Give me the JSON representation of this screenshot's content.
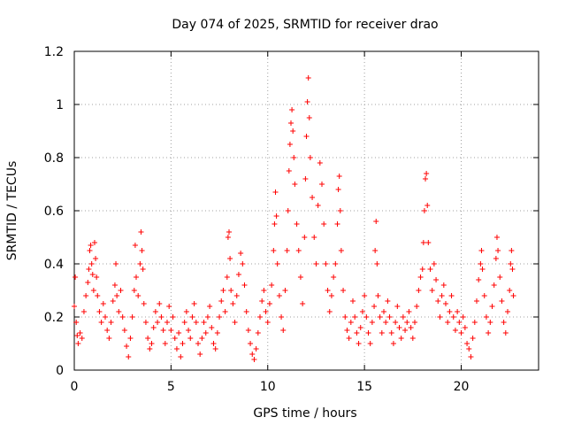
{
  "chart_data": {
    "type": "scatter",
    "title": "Day 074 of 2025, SRMTID for receiver drao",
    "xlabel": "GPS time / hours",
    "ylabel": "SRMTID / TECUs",
    "xlim": [
      0,
      24
    ],
    "ylim": [
      0,
      1.2
    ],
    "xticks": [
      0,
      5,
      10,
      15,
      20
    ],
    "xtick_labels": [
      "0",
      "5",
      "10",
      "15",
      "20"
    ],
    "yticks": [
      0,
      0.2,
      0.4,
      0.6,
      0.8,
      1,
      1.2
    ],
    "ytick_labels": [
      "0",
      "0.2",
      "0.4",
      "0.6",
      "0.8",
      "1",
      "1.2"
    ],
    "grid": true,
    "marker": "+",
    "color": "#ff0000",
    "series": [
      {
        "name": "SRMTID",
        "points": [
          [
            0.0,
            0.24
          ],
          [
            0.05,
            0.35
          ],
          [
            0.1,
            0.18
          ],
          [
            0.15,
            0.13
          ],
          [
            0.2,
            0.1
          ],
          [
            0.3,
            0.14
          ],
          [
            0.4,
            0.12
          ],
          [
            0.5,
            0.22
          ],
          [
            0.6,
            0.28
          ],
          [
            0.7,
            0.33
          ],
          [
            0.75,
            0.38
          ],
          [
            0.8,
            0.45
          ],
          [
            0.85,
            0.47
          ],
          [
            0.9,
            0.4
          ],
          [
            0.95,
            0.36
          ],
          [
            1.0,
            0.3
          ],
          [
            1.05,
            0.48
          ],
          [
            1.1,
            0.42
          ],
          [
            1.15,
            0.35
          ],
          [
            1.2,
            0.28
          ],
          [
            1.3,
            0.22
          ],
          [
            1.4,
            0.18
          ],
          [
            1.5,
            0.25
          ],
          [
            1.6,
            0.2
          ],
          [
            1.7,
            0.15
          ],
          [
            1.8,
            0.12
          ],
          [
            1.9,
            0.18
          ],
          [
            2.0,
            0.26
          ],
          [
            2.1,
            0.32
          ],
          [
            2.15,
            0.4
          ],
          [
            2.2,
            0.28
          ],
          [
            2.3,
            0.22
          ],
          [
            2.4,
            0.3
          ],
          [
            2.5,
            0.2
          ],
          [
            2.6,
            0.15
          ],
          [
            2.7,
            0.09
          ],
          [
            2.8,
            0.05
          ],
          [
            2.9,
            0.12
          ],
          [
            3.0,
            0.2
          ],
          [
            3.1,
            0.3
          ],
          [
            3.15,
            0.47
          ],
          [
            3.2,
            0.35
          ],
          [
            3.3,
            0.28
          ],
          [
            3.4,
            0.4
          ],
          [
            3.45,
            0.52
          ],
          [
            3.5,
            0.45
          ],
          [
            3.55,
            0.38
          ],
          [
            3.6,
            0.25
          ],
          [
            3.7,
            0.18
          ],
          [
            3.8,
            0.12
          ],
          [
            3.9,
            0.08
          ],
          [
            4.0,
            0.1
          ],
          [
            4.1,
            0.16
          ],
          [
            4.2,
            0.22
          ],
          [
            4.3,
            0.18
          ],
          [
            4.4,
            0.25
          ],
          [
            4.5,
            0.2
          ],
          [
            4.6,
            0.15
          ],
          [
            4.7,
            0.1
          ],
          [
            4.8,
            0.18
          ],
          [
            4.9,
            0.24
          ],
          [
            5.0,
            0.15
          ],
          [
            5.1,
            0.2
          ],
          [
            5.2,
            0.12
          ],
          [
            5.3,
            0.08
          ],
          [
            5.4,
            0.14
          ],
          [
            5.5,
            0.05
          ],
          [
            5.6,
            0.1
          ],
          [
            5.7,
            0.18
          ],
          [
            5.8,
            0.22
          ],
          [
            5.9,
            0.15
          ],
          [
            6.0,
            0.12
          ],
          [
            6.1,
            0.2
          ],
          [
            6.2,
            0.25
          ],
          [
            6.3,
            0.18
          ],
          [
            6.4,
            0.1
          ],
          [
            6.5,
            0.06
          ],
          [
            6.6,
            0.12
          ],
          [
            6.7,
            0.18
          ],
          [
            6.8,
            0.14
          ],
          [
            6.9,
            0.2
          ],
          [
            7.0,
            0.24
          ],
          [
            7.1,
            0.16
          ],
          [
            7.2,
            0.1
          ],
          [
            7.3,
            0.08
          ],
          [
            7.4,
            0.14
          ],
          [
            7.5,
            0.2
          ],
          [
            7.6,
            0.26
          ],
          [
            7.7,
            0.3
          ],
          [
            7.8,
            0.22
          ],
          [
            7.9,
            0.35
          ],
          [
            7.95,
            0.5
          ],
          [
            8.0,
            0.52
          ],
          [
            8.05,
            0.42
          ],
          [
            8.1,
            0.3
          ],
          [
            8.2,
            0.25
          ],
          [
            8.3,
            0.18
          ],
          [
            8.4,
            0.28
          ],
          [
            8.5,
            0.36
          ],
          [
            8.6,
            0.44
          ],
          [
            8.7,
            0.4
          ],
          [
            8.8,
            0.32
          ],
          [
            8.9,
            0.22
          ],
          [
            9.0,
            0.15
          ],
          [
            9.1,
            0.1
          ],
          [
            9.2,
            0.06
          ],
          [
            9.3,
            0.04
          ],
          [
            9.4,
            0.08
          ],
          [
            9.5,
            0.14
          ],
          [
            9.6,
            0.2
          ],
          [
            9.7,
            0.26
          ],
          [
            9.8,
            0.3
          ],
          [
            9.9,
            0.22
          ],
          [
            10.0,
            0.18
          ],
          [
            10.1,
            0.25
          ],
          [
            10.2,
            0.32
          ],
          [
            10.3,
            0.45
          ],
          [
            10.35,
            0.55
          ],
          [
            10.4,
            0.67
          ],
          [
            10.45,
            0.58
          ],
          [
            10.5,
            0.4
          ],
          [
            10.6,
            0.28
          ],
          [
            10.7,
            0.2
          ],
          [
            10.8,
            0.15
          ],
          [
            10.9,
            0.3
          ],
          [
            11.0,
            0.45
          ],
          [
            11.05,
            0.6
          ],
          [
            11.1,
            0.75
          ],
          [
            11.15,
            0.85
          ],
          [
            11.2,
            0.93
          ],
          [
            11.25,
            0.98
          ],
          [
            11.3,
            0.9
          ],
          [
            11.35,
            0.8
          ],
          [
            11.4,
            0.7
          ],
          [
            11.5,
            0.55
          ],
          [
            11.6,
            0.45
          ],
          [
            11.7,
            0.35
          ],
          [
            11.8,
            0.25
          ],
          [
            11.9,
            0.5
          ],
          [
            11.95,
            0.72
          ],
          [
            12.0,
            0.88
          ],
          [
            12.05,
            1.01
          ],
          [
            12.1,
            1.1
          ],
          [
            12.15,
            0.95
          ],
          [
            12.2,
            0.8
          ],
          [
            12.3,
            0.65
          ],
          [
            12.4,
            0.5
          ],
          [
            12.5,
            0.4
          ],
          [
            12.6,
            0.62
          ],
          [
            12.7,
            0.78
          ],
          [
            12.8,
            0.7
          ],
          [
            12.9,
            0.55
          ],
          [
            13.0,
            0.4
          ],
          [
            13.1,
            0.3
          ],
          [
            13.2,
            0.22
          ],
          [
            13.3,
            0.28
          ],
          [
            13.4,
            0.35
          ],
          [
            13.5,
            0.4
          ],
          [
            13.6,
            0.55
          ],
          [
            13.65,
            0.68
          ],
          [
            13.7,
            0.73
          ],
          [
            13.75,
            0.6
          ],
          [
            13.8,
            0.45
          ],
          [
            13.9,
            0.3
          ],
          [
            14.0,
            0.2
          ],
          [
            14.1,
            0.15
          ],
          [
            14.2,
            0.12
          ],
          [
            14.3,
            0.18
          ],
          [
            14.4,
            0.26
          ],
          [
            14.5,
            0.2
          ],
          [
            14.6,
            0.14
          ],
          [
            14.7,
            0.1
          ],
          [
            14.8,
            0.16
          ],
          [
            14.9,
            0.22
          ],
          [
            15.0,
            0.28
          ],
          [
            15.1,
            0.2
          ],
          [
            15.2,
            0.14
          ],
          [
            15.3,
            0.1
          ],
          [
            15.4,
            0.18
          ],
          [
            15.5,
            0.24
          ],
          [
            15.55,
            0.45
          ],
          [
            15.6,
            0.56
          ],
          [
            15.65,
            0.4
          ],
          [
            15.7,
            0.28
          ],
          [
            15.8,
            0.2
          ],
          [
            15.9,
            0.14
          ],
          [
            16.0,
            0.22
          ],
          [
            16.1,
            0.18
          ],
          [
            16.2,
            0.26
          ],
          [
            16.3,
            0.2
          ],
          [
            16.4,
            0.14
          ],
          [
            16.5,
            0.1
          ],
          [
            16.6,
            0.18
          ],
          [
            16.7,
            0.24
          ],
          [
            16.8,
            0.16
          ],
          [
            16.9,
            0.12
          ],
          [
            17.0,
            0.2
          ],
          [
            17.1,
            0.15
          ],
          [
            17.2,
            0.18
          ],
          [
            17.3,
            0.22
          ],
          [
            17.4,
            0.16
          ],
          [
            17.5,
            0.12
          ],
          [
            17.6,
            0.18
          ],
          [
            17.7,
            0.24
          ],
          [
            17.8,
            0.3
          ],
          [
            17.9,
            0.35
          ],
          [
            18.0,
            0.38
          ],
          [
            18.05,
            0.48
          ],
          [
            18.1,
            0.6
          ],
          [
            18.15,
            0.72
          ],
          [
            18.2,
            0.74
          ],
          [
            18.25,
            0.62
          ],
          [
            18.3,
            0.48
          ],
          [
            18.4,
            0.38
          ],
          [
            18.5,
            0.3
          ],
          [
            18.6,
            0.4
          ],
          [
            18.7,
            0.34
          ],
          [
            18.8,
            0.26
          ],
          [
            18.9,
            0.2
          ],
          [
            19.0,
            0.28
          ],
          [
            19.1,
            0.32
          ],
          [
            19.2,
            0.25
          ],
          [
            19.3,
            0.18
          ],
          [
            19.4,
            0.22
          ],
          [
            19.5,
            0.28
          ],
          [
            19.6,
            0.2
          ],
          [
            19.7,
            0.15
          ],
          [
            19.8,
            0.22
          ],
          [
            19.9,
            0.18
          ],
          [
            20.0,
            0.14
          ],
          [
            20.1,
            0.2
          ],
          [
            20.2,
            0.16
          ],
          [
            20.3,
            0.1
          ],
          [
            20.4,
            0.08
          ],
          [
            20.5,
            0.05
          ],
          [
            20.6,
            0.12
          ],
          [
            20.7,
            0.18
          ],
          [
            20.8,
            0.26
          ],
          [
            20.9,
            0.34
          ],
          [
            21.0,
            0.4
          ],
          [
            21.05,
            0.45
          ],
          [
            21.1,
            0.38
          ],
          [
            21.2,
            0.28
          ],
          [
            21.3,
            0.2
          ],
          [
            21.4,
            0.14
          ],
          [
            21.5,
            0.18
          ],
          [
            21.6,
            0.24
          ],
          [
            21.7,
            0.32
          ],
          [
            21.8,
            0.42
          ],
          [
            21.85,
            0.5
          ],
          [
            21.9,
            0.45
          ],
          [
            22.0,
            0.35
          ],
          [
            22.1,
            0.26
          ],
          [
            22.2,
            0.18
          ],
          [
            22.3,
            0.14
          ],
          [
            22.4,
            0.22
          ],
          [
            22.5,
            0.3
          ],
          [
            22.55,
            0.4
          ],
          [
            22.6,
            0.45
          ],
          [
            22.65,
            0.38
          ],
          [
            22.7,
            0.28
          ]
        ]
      }
    ]
  }
}
